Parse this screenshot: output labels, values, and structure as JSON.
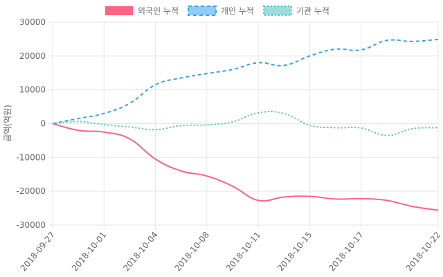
{
  "chart_data": {
    "type": "line",
    "title": "",
    "xlabel": "",
    "ylabel": "금액(억원)",
    "ylim": [
      -30000,
      30000
    ],
    "yticks": [
      30000,
      20000,
      10000,
      0,
      -10000,
      -20000,
      -30000
    ],
    "legend_position": "top-center",
    "x": [
      "2018-09-27",
      "2018-09-28",
      "2018-10-01",
      "2018-10-02",
      "2018-10-04",
      "2018-10-05",
      "2018-10-08",
      "2018-10-10",
      "2018-10-11",
      "2018-10-12",
      "2018-10-15",
      "2018-10-16",
      "2018-10-17",
      "2018-10-18",
      "2018-10-19",
      "2018-10-22"
    ],
    "xtick_labels": [
      "2018-09-27",
      "2018-10-01",
      "2018-10-04",
      "2018-10-08",
      "2018-10-11",
      "2018-10-15",
      "2018-10-17",
      "2018-10-22"
    ],
    "xtick_indices": [
      0,
      2,
      4,
      6,
      8,
      10,
      12,
      15
    ],
    "series": [
      {
        "name": "외국인 누적",
        "color": "#ff6384",
        "dash": "solid",
        "values": [
          0,
          -2000,
          -2500,
          -4500,
          -10500,
          -14000,
          -15500,
          -18500,
          -22700,
          -21700,
          -21500,
          -22300,
          -22200,
          -22700,
          -24500,
          -25600
        ]
      },
      {
        "name": "개인 누적",
        "color": "#36a2eb",
        "dash": "dashed",
        "values": [
          0,
          1500,
          3000,
          6000,
          11500,
          13500,
          14800,
          16000,
          18000,
          17200,
          20000,
          22000,
          21800,
          24600,
          24300,
          24900
        ]
      },
      {
        "name": "기관 누적",
        "color": "#4bc0c0",
        "dash": "dotted",
        "values": [
          0,
          600,
          -300,
          -1000,
          -1800,
          -600,
          -400,
          500,
          3200,
          3000,
          -500,
          -1200,
          -1300,
          -3500,
          -1500,
          -1200
        ]
      }
    ]
  }
}
